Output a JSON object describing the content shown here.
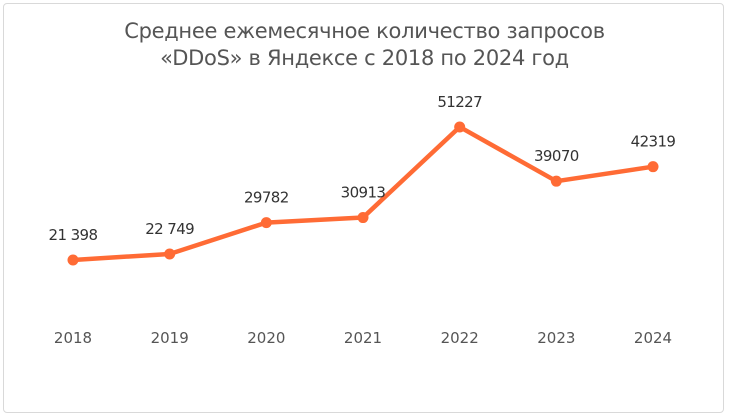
{
  "chart_data": {
    "type": "line",
    "title_line1": "Среднее ежемесячное количество запросов",
    "title_line2": "«DDoS» в Яндексе с 2018 по 2024 год",
    "categories": [
      "2018",
      "2019",
      "2020",
      "2021",
      "2022",
      "2023",
      "2024"
    ],
    "values": [
      21398,
      22749,
      29782,
      30913,
      51227,
      39070,
      42319
    ],
    "data_labels": [
      "21 398",
      "22 749",
      "29782",
      "30913",
      "51227",
      "39070",
      "42319"
    ],
    "xlabel": "",
    "ylabel": "",
    "grid": false,
    "legend": "none",
    "color": "#FF6B35"
  }
}
